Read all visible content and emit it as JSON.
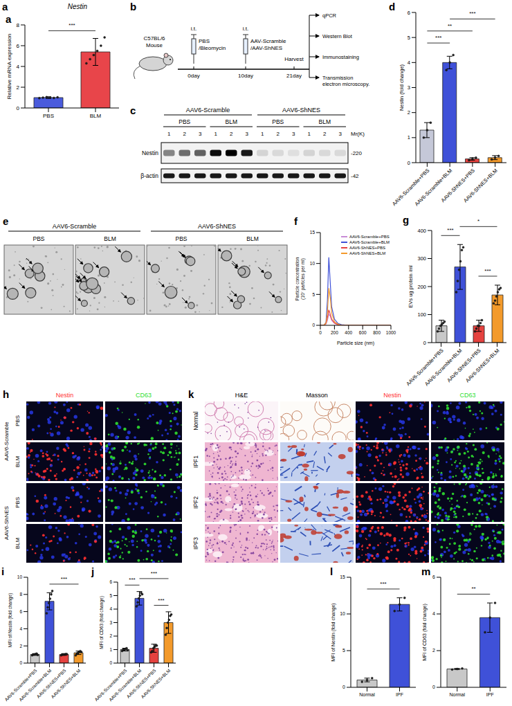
{
  "chart_data": [
    {
      "panel": "a",
      "type": "bar",
      "title": "Nestin",
      "y_label": "Relative mRNA expression",
      "categories": [
        "PBS",
        "BLM"
      ],
      "values": [
        1.0,
        5.4
      ],
      "errors": [
        0.08,
        1.3
      ],
      "points": [
        [
          0.95,
          1.0,
          1.05,
          1.0,
          0.97,
          1.03
        ],
        [
          4.3,
          4.7,
          5.1,
          5.5,
          6.0,
          6.8
        ]
      ],
      "colors": [
        "#4a5bdc",
        "#e8454a"
      ],
      "ylim": [
        0,
        8
      ],
      "yticks": [
        0,
        2,
        4,
        6,
        8
      ],
      "significance": [
        {
          "pair": [
            0,
            1
          ],
          "label": "***"
        }
      ]
    },
    {
      "panel": "d",
      "type": "bar",
      "y_label": "Nestin (fold change)",
      "categories": [
        "AAV6-Scramble+PBS",
        "AAV6-Scramble+BLM",
        "AAV6-ShNES+PBS",
        "AAV6-ShNES+BLM"
      ],
      "values": [
        1.3,
        4.0,
        0.15,
        0.2
      ],
      "errors": [
        0.3,
        0.25,
        0.05,
        0.08
      ],
      "points": [
        [
          1.0,
          1.3,
          1.6
        ],
        [
          3.7,
          4.0,
          4.3
        ],
        [
          0.1,
          0.15,
          0.2
        ],
        [
          0.13,
          0.2,
          0.27
        ]
      ],
      "colors": [
        "#c5c8d8",
        "#3f51d8",
        "#e5423f",
        "#f39a2b"
      ],
      "ylim": [
        0,
        6
      ],
      "yticks": [
        0,
        1,
        2,
        3,
        4,
        5,
        6
      ],
      "significance": [
        {
          "pair": [
            0,
            1
          ],
          "label": "***"
        },
        {
          "pair": [
            0,
            2
          ],
          "label": "**"
        },
        {
          "pair": [
            1,
            3
          ],
          "label": "***"
        }
      ]
    },
    {
      "panel": "f",
      "type": "line",
      "x_label": "Particle size (nm)",
      "y_label": "Particle concentration (10⁷ particles per ml)",
      "x": [
        0,
        50,
        80,
        100,
        120,
        140,
        160,
        200,
        250,
        300,
        400,
        600,
        800,
        1000
      ],
      "series": [
        {
          "name": "AAV6-Scramble+PBS",
          "color": "#c98bd6",
          "values": [
            0,
            0,
            0.2,
            0.8,
            1.8,
            1.5,
            0.8,
            0.3,
            0.1,
            0,
            0,
            0,
            0,
            0
          ]
        },
        {
          "name": "AAV6-Scramble+BLM",
          "color": "#3f51d8",
          "values": [
            0,
            0,
            0.5,
            4,
            11,
            7,
            3,
            1,
            0.3,
            0.1,
            0,
            0,
            0,
            0
          ]
        },
        {
          "name": "AAV6-ShNES+PBS",
          "color": "#e5423f",
          "values": [
            0,
            0,
            0.3,
            1.2,
            2.5,
            1.8,
            1,
            0.4,
            0.1,
            0,
            0,
            0,
            0,
            0
          ]
        },
        {
          "name": "AAV6-ShNES+BLM",
          "color": "#f39a2b",
          "values": [
            0,
            0,
            0.4,
            2,
            6,
            4.5,
            2,
            0.6,
            0.2,
            0,
            0,
            0,
            0,
            0
          ]
        }
      ],
      "xlim": [
        0,
        1000
      ],
      "xticks": [
        0,
        200,
        400,
        600,
        800,
        1000
      ],
      "ylim": [
        0,
        15
      ],
      "yticks": [
        0,
        5,
        10,
        15
      ],
      "legend": "upper right"
    },
    {
      "panel": "g",
      "type": "bar",
      "y_label": "EVs ug protein /ml",
      "categories": [
        "AAV6-Scramble+PBS",
        "AAV6-Scramble+BLM",
        "AAV6-ShNES+PBS",
        "AAV6-ShNES+BLM"
      ],
      "values": [
        60,
        270,
        60,
        170
      ],
      "errors": [
        20,
        80,
        20,
        35
      ],
      "points": [
        [
          40,
          50,
          60,
          65,
          70,
          75
        ],
        [
          180,
          220,
          260,
          290,
          330,
          340
        ],
        [
          40,
          50,
          60,
          60,
          70,
          80
        ],
        [
          140,
          150,
          165,
          180,
          190,
          195
        ]
      ],
      "colors": [
        "#c8c8c8",
        "#3f51d8",
        "#e5423f",
        "#f39a2b"
      ],
      "ylim": [
        0,
        400
      ],
      "yticks": [
        0,
        100,
        200,
        300,
        400
      ],
      "significance": [
        {
          "pair": [
            2,
            3
          ],
          "label": "***"
        },
        {
          "pair": [
            0,
            1
          ],
          "label": "***"
        },
        {
          "pair": [
            1,
            3
          ],
          "label": "*"
        }
      ]
    },
    {
      "panel": "i",
      "type": "bar",
      "y_label": "MFI of Nestin (fold change)",
      "categories": [
        "AAV6-Scramble+PBS",
        "AAV6-Scramble+BLM",
        "AAV6-ShNES+PBS",
        "AAV6-ShNES+BLM"
      ],
      "values": [
        1.0,
        7.2,
        1.0,
        1.2
      ],
      "errors": [
        0.1,
        1.0,
        0.1,
        0.2
      ],
      "points": [
        [
          0.9,
          1.0,
          1.0,
          1.05,
          1.1,
          0.95
        ],
        [
          5.8,
          6.5,
          7.0,
          7.5,
          8.0,
          8.4
        ],
        [
          0.9,
          1.0,
          1.0,
          1.0,
          1.05,
          1.05
        ],
        [
          0.9,
          1.1,
          1.2,
          1.3,
          1.4,
          1.3
        ]
      ],
      "colors": [
        "#c8c8c8",
        "#3f51d8",
        "#e5423f",
        "#f39a2b"
      ],
      "ylim": [
        0,
        10
      ],
      "yticks": [
        0,
        2,
        4,
        6,
        8,
        10
      ],
      "significance": [
        {
          "pair": [
            1,
            3
          ],
          "label": "***"
        }
      ]
    },
    {
      "panel": "j",
      "type": "bar",
      "y_label": "MFI of CD63 (fold change)",
      "categories": [
        "AAV6-Scramble+PBS",
        "AAV6-Scramble+BLM",
        "AAV6-ShNES+PBS",
        "AAV6-ShNES+BLM"
      ],
      "values": [
        1.0,
        4.8,
        1.1,
        3.0
      ],
      "errors": [
        0.1,
        0.5,
        0.3,
        0.8
      ],
      "points": [
        [
          0.9,
          1.0,
          1.0,
          1.05,
          1.1,
          0.95
        ],
        [
          4.2,
          4.5,
          4.8,
          5.0,
          5.2,
          5.1
        ],
        [
          0.8,
          0.9,
          1.1,
          1.2,
          1.3,
          1.3
        ],
        [
          2.1,
          2.6,
          3.0,
          3.2,
          3.5,
          3.6
        ]
      ],
      "colors": [
        "#c8c8c8",
        "#3f51d8",
        "#e5423f",
        "#f39a2b"
      ],
      "ylim": [
        0,
        6
      ],
      "yticks": [
        0,
        1,
        2,
        3,
        4,
        5,
        6
      ],
      "significance": [
        {
          "pair": [
            2,
            3
          ],
          "label": "***"
        },
        {
          "pair": [
            0,
            1
          ],
          "label": "***"
        },
        {
          "pair": [
            1,
            3
          ],
          "label": "***"
        }
      ]
    },
    {
      "panel": "l",
      "type": "bar",
      "y_label": "MFI of Nestin (fold change)",
      "categories": [
        "Normal",
        "IPF"
      ],
      "values": [
        1.0,
        11.3
      ],
      "errors": [
        0.25,
        0.9
      ],
      "points": [
        [
          0.75,
          1.0,
          1.25
        ],
        [
          10.4,
          11.3,
          12.2
        ]
      ],
      "colors": [
        "#c8c8c8",
        "#3f51d8"
      ],
      "ylim": [
        0,
        15
      ],
      "yticks": [
        0,
        5,
        10,
        15
      ],
      "significance": [
        {
          "pair": [
            0,
            1
          ],
          "label": "***"
        }
      ]
    },
    {
      "panel": "m",
      "type": "bar",
      "y_label": "MFI of CD63 (fold change)",
      "categories": [
        "Normal",
        "IPF"
      ],
      "values": [
        1.0,
        3.8
      ],
      "errors": [
        0.03,
        0.8
      ],
      "points": [
        [
          0.97,
          1.0,
          1.03
        ],
        [
          3.0,
          3.8,
          4.6
        ]
      ],
      "colors": [
        "#c8c8c8",
        "#3f51d8"
      ],
      "ylim": [
        0,
        6
      ],
      "yticks": [
        0,
        2,
        4,
        6
      ],
      "significance": [
        {
          "pair": [
            0,
            1
          ],
          "label": "**"
        }
      ]
    }
  ],
  "schematic": {
    "panel": "b",
    "mouse": "C57BL/6 Mouse",
    "steps": [
      {
        "route": "i.t.",
        "agent": "PBS /Bleomycin",
        "day": "0day"
      },
      {
        "route": "i.t.",
        "agent": "AAV-Scramble /AAV-ShNES",
        "day": "10day"
      }
    ],
    "end_day": "21day",
    "harvest": "Harvest",
    "analyses": [
      "qPCR",
      "Western Blot",
      "Immunostaining",
      "Transmission electron microscopy."
    ]
  },
  "western_blot": {
    "panel": "c",
    "groups": [
      "AAV6-Scramble",
      "AAV6-ShNES"
    ],
    "treatments": [
      "PBS",
      "BLM"
    ],
    "lanes": [
      1,
      2,
      3
    ],
    "mr_label": "Mr(K)",
    "rows": [
      {
        "name": "Nestin",
        "mr": "-220",
        "intensity": [
          0.45,
          0.55,
          0.6,
          0.95,
          1.0,
          0.9,
          0.12,
          0.1,
          0.08,
          0.12,
          0.1,
          0.1
        ]
      },
      {
        "name": "β-actin",
        "mr": "-42",
        "intensity": [
          0.9,
          0.9,
          0.9,
          0.9,
          0.9,
          0.9,
          0.9,
          0.9,
          0.9,
          0.9,
          0.9,
          0.9
        ]
      }
    ]
  },
  "tem": {
    "panel": "e",
    "groups": [
      "AAV6-Scramble",
      "AAV6-ShNES"
    ],
    "treatments": [
      "PBS",
      "BLM"
    ]
  },
  "mouse_staining": {
    "panel": "h",
    "groups": [
      "AAV6-Scramble",
      "AAV6-ShNES"
    ],
    "treatments": [
      "PBS",
      "BLM"
    ],
    "stains": [
      {
        "name": "Nestin",
        "color": "#ff3030"
      },
      {
        "name": "CD63",
        "color": "#30e030"
      }
    ]
  },
  "human_staining": {
    "panel": "k",
    "rows": [
      "Normal",
      "IPF1",
      "IPF2",
      "IPF3"
    ],
    "stains": [
      {
        "name": "H&E"
      },
      {
        "name": "Masson"
      },
      {
        "name": "Nestin",
        "color": "#ff3030"
      },
      {
        "name": "CD63",
        "color": "#30e030"
      }
    ]
  }
}
